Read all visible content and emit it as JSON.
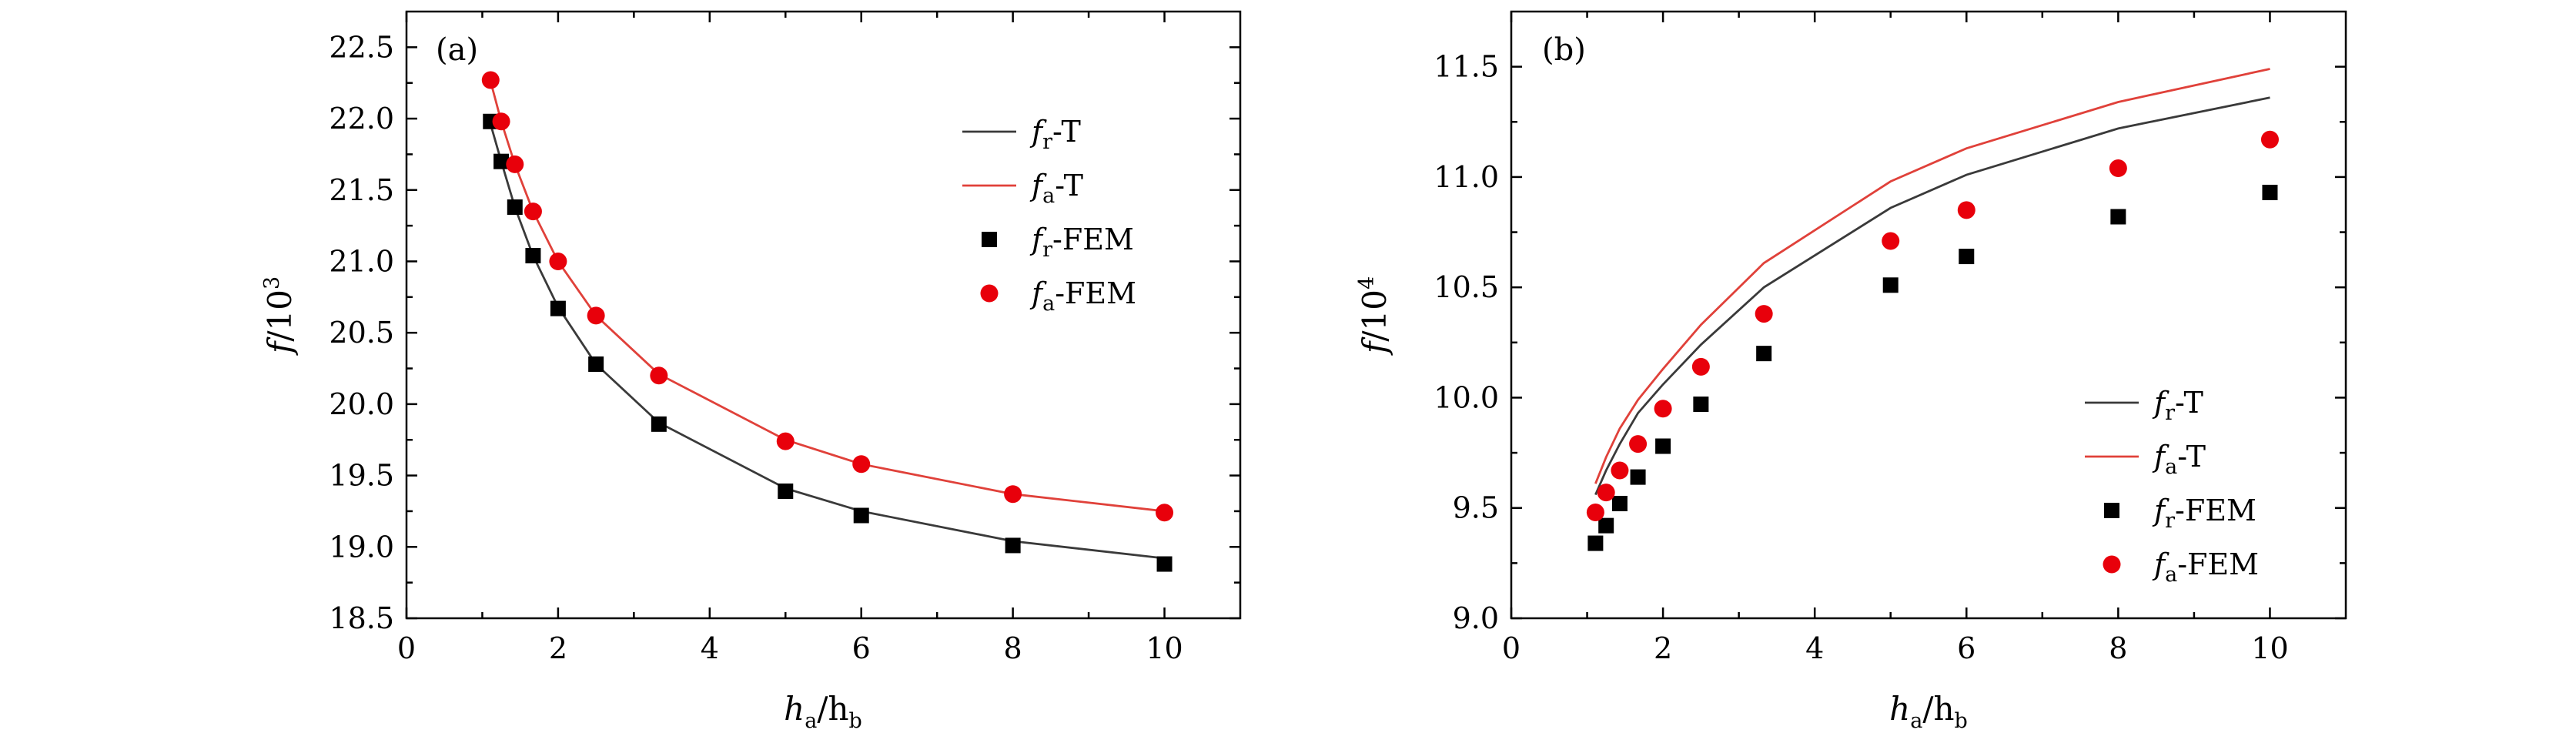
{
  "colors": {
    "theory_r": "#3a3a3a",
    "theory_a": "#e0413a",
    "fem_r": "#000000",
    "fem_a": "#e8000b"
  },
  "legend_labels": {
    "var_f": "f",
    "sub_r": "r",
    "sub_a": "a",
    "suffix_T": "-T",
    "suffix_FEM": "-FEM"
  },
  "chart_data": [
    {
      "type": "line",
      "panel_label": "(a)",
      "xlabel_main": "h",
      "xlabel_sub1": "a",
      "xlabel_slash": "/h",
      "xlabel_sub2": "b",
      "ylabel_main": "f",
      "ylabel_rest": "/10",
      "ylabel_exp": "3",
      "xlim": [
        0,
        11
      ],
      "ylim": [
        18.5,
        22.75
      ],
      "xticks": [
        0,
        2,
        4,
        6,
        8,
        10
      ],
      "xtick_labels": [
        "0",
        "2",
        "4",
        "6",
        "8",
        "10"
      ],
      "yticks": [
        18.5,
        19.0,
        19.5,
        20.0,
        20.5,
        21.0,
        21.5,
        22.0,
        22.5
      ],
      "ytick_labels": [
        "18.5",
        "19.0",
        "19.5",
        "20.0",
        "20.5",
        "21.0",
        "21.5",
        "22.0",
        "22.5"
      ],
      "legend_position": "top-right",
      "series": [
        {
          "name": "fr-T",
          "kind": "line",
          "color_key": "theory_r",
          "x": [
            1.11,
            1.25,
            1.43,
            1.67,
            2.0,
            2.5,
            3.33,
            5.0,
            6.0,
            8.0,
            10.0
          ],
          "y": [
            21.96,
            21.7,
            21.38,
            21.04,
            20.68,
            20.28,
            19.87,
            19.41,
            19.25,
            19.04,
            18.92
          ]
        },
        {
          "name": "fa-T",
          "kind": "line",
          "color_key": "theory_a",
          "x": [
            1.11,
            1.25,
            1.43,
            1.67,
            2.0,
            2.5,
            3.33,
            5.0,
            6.0,
            8.0,
            10.0
          ],
          "y": [
            22.26,
            21.98,
            21.68,
            21.35,
            21.0,
            20.62,
            20.21,
            19.75,
            19.58,
            19.37,
            19.25
          ]
        },
        {
          "name": "fr-FEM",
          "kind": "square",
          "color_key": "fem_r",
          "x": [
            1.11,
            1.25,
            1.43,
            1.67,
            2.0,
            2.5,
            3.33,
            5.0,
            6.0,
            8.0,
            10.0
          ],
          "y": [
            21.98,
            21.7,
            21.38,
            21.04,
            20.67,
            20.28,
            19.86,
            19.39,
            19.22,
            19.01,
            18.88
          ]
        },
        {
          "name": "fa-FEM",
          "kind": "circle",
          "color_key": "fem_a",
          "x": [
            1.11,
            1.25,
            1.43,
            1.67,
            2.0,
            2.5,
            3.33,
            5.0,
            6.0,
            8.0,
            10.0
          ],
          "y": [
            22.27,
            21.98,
            21.68,
            21.35,
            21.0,
            20.62,
            20.2,
            19.74,
            19.58,
            19.37,
            19.24
          ]
        }
      ]
    },
    {
      "type": "line",
      "panel_label": "(b)",
      "xlabel_main": "h",
      "xlabel_sub1": "a",
      "xlabel_slash": "/h",
      "xlabel_sub2": "b",
      "ylabel_main": "f",
      "ylabel_rest": "/10",
      "ylabel_exp": "4",
      "xlim": [
        0,
        11
      ],
      "ylim": [
        9.0,
        11.75
      ],
      "xticks": [
        0,
        2,
        4,
        6,
        8,
        10
      ],
      "xtick_labels": [
        "0",
        "2",
        "4",
        "6",
        "8",
        "10"
      ],
      "yticks": [
        9.0,
        9.5,
        10.0,
        10.5,
        11.0,
        11.5
      ],
      "ytick_labels": [
        "9.0",
        "9.5",
        "10.0",
        "10.5",
        "11.0",
        "11.5"
      ],
      "legend_position": "bottom-right",
      "series": [
        {
          "name": "fr-T",
          "kind": "line",
          "color_key": "theory_r",
          "x": [
            1.11,
            1.25,
            1.43,
            1.67,
            2.0,
            2.5,
            3.33,
            5.0,
            6.0,
            8.0,
            10.0
          ],
          "y": [
            9.56,
            9.67,
            9.79,
            9.93,
            10.06,
            10.24,
            10.5,
            10.86,
            11.01,
            11.22,
            11.36
          ]
        },
        {
          "name": "fa-T",
          "kind": "line",
          "color_key": "theory_a",
          "x": [
            1.11,
            1.25,
            1.43,
            1.67,
            2.0,
            2.5,
            3.33,
            5.0,
            6.0,
            8.0,
            10.0
          ],
          "y": [
            9.61,
            9.73,
            9.86,
            9.99,
            10.13,
            10.33,
            10.61,
            10.98,
            11.13,
            11.34,
            11.49
          ]
        },
        {
          "name": "fr-FEM",
          "kind": "square",
          "color_key": "fem_r",
          "x": [
            1.11,
            1.25,
            1.43,
            1.67,
            2.0,
            2.5,
            3.33,
            5.0,
            6.0,
            8.0,
            10.0
          ],
          "y": [
            9.34,
            9.42,
            9.52,
            9.64,
            9.78,
            9.97,
            10.2,
            10.51,
            10.64,
            10.82,
            10.93
          ]
        },
        {
          "name": "fa-FEM",
          "kind": "circle",
          "color_key": "fem_a",
          "x": [
            1.11,
            1.25,
            1.43,
            1.67,
            2.0,
            2.5,
            3.33,
            5.0,
            6.0,
            8.0,
            10.0
          ],
          "y": [
            9.48,
            9.57,
            9.67,
            9.79,
            9.95,
            10.14,
            10.38,
            10.71,
            10.85,
            11.04,
            11.17
          ]
        }
      ]
    }
  ]
}
